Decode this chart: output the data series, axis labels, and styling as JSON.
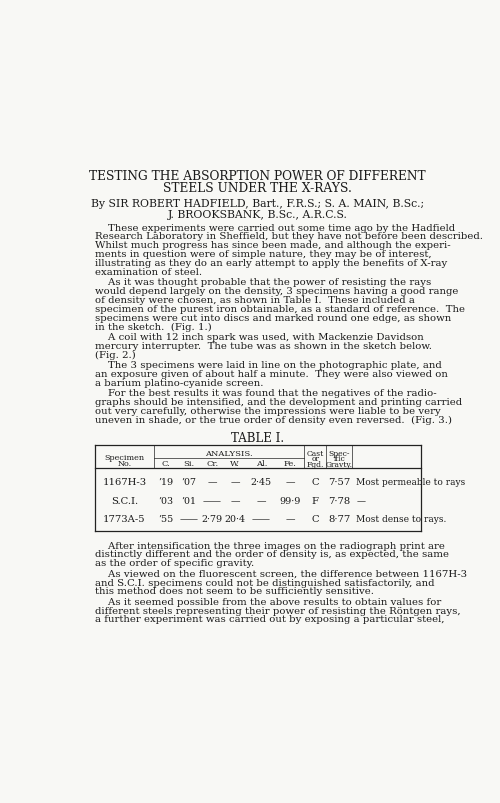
{
  "bg_color": "#ffffff",
  "page_color": "#f8f8f5",
  "title_line1": "TESTING THE ABSORPTION POWER OF DIFFERENT",
  "title_line2": "STEELS UNDER THE X-RAYS.",
  "authors_line1": "By SIR ROBERT HADFIELD, Bart., F.R.S.; S. A. MAIN, B.Sc.;",
  "authors_line2": "J. BROOKSBANK, B.Sc., A.R.C.S.",
  "para1_lines": [
    "    These experiments were carried out some time ago by the Hadfield",
    "Research Laboratory in Sheffield, but they have not before been described.",
    "Whilst much progress has since been made, and although the experi-",
    "ments in question were of simple nature, they may be of interest,",
    "illustrating as they do an early attempt to apply the benefits of X-ray",
    "examination of steel."
  ],
  "para2_lines": [
    "    As it was thought probable that the power of resisting the rays",
    "would depend largely on the density, 3 specimens having a good range",
    "of density were chosen, as shown in Table I.  These included a",
    "specimen of the purest iron obtainable, as a standard of reference.  The",
    "specimens were cut into discs and marked round one edge, as shown",
    "in the sketch.  (Fig. 1.)"
  ],
  "para3_lines": [
    "    A coil with 12 inch spark was used, with Mackenzie Davidson",
    "mercury interrupter.  The tube was as shown in the sketch below.",
    "(Fig. 2.)"
  ],
  "para4_lines": [
    "    The 3 specimens were laid in line on the photographic plate, and",
    "an exposure given of about half a minute.  They were also viewed on",
    "a barium platino-cyanide screen."
  ],
  "para5_lines": [
    "    For the best results it was found that the negatives of the radio-",
    "graphs should be intensified, and the development and printing carried",
    "out very carefully, otherwise the impressions were liable to be very",
    "uneven in shade, or the true order of density even reversed.  (Fig. 3.)"
  ],
  "table_title": "TABLE I.",
  "para6_lines": [
    "    After intensification the three images on the radiograph print are",
    "distinctly different and the order of density is, as expected, the same",
    "as the order of specific gravity."
  ],
  "para7_lines": [
    "    As viewed on the fluorescent screen, the difference between 1167H-3",
    "and S.C.I. specimens could not be distinguished satisfactorily, and",
    "this method does not seem to be sufficiently sensitive."
  ],
  "para8_lines": [
    "    As it seemed possible from the above results to obtain values for",
    "different steels representing their power of resisting the Röntgen rays,",
    "a further experiment was carried out by exposing a particular steel,"
  ],
  "table_rows": [
    {
      "spec": "1167H-3",
      "C": "’19",
      "Si": "’07",
      "Cr": "—",
      "W": "—",
      "Al": "2·45",
      "Fe": "—",
      "cast": "C",
      "sg": "7·57",
      "note": "Most permeable to rays"
    },
    {
      "spec": "S.C.I.",
      "C": "’03",
      "Si": "’01",
      "Cr": "——",
      "W": "—",
      "Al": "—",
      "Fe": "99·9",
      "cast": "F",
      "sg": "7·78",
      "note": "—"
    },
    {
      "spec": "1773A-5",
      "C": "’55",
      "Si": "——",
      "Cr": "2·79",
      "W": "20·4",
      "Al": "——",
      "Fe": "—",
      "cast": "C",
      "sg": "8·77",
      "note": "Most dense to rays."
    }
  ]
}
